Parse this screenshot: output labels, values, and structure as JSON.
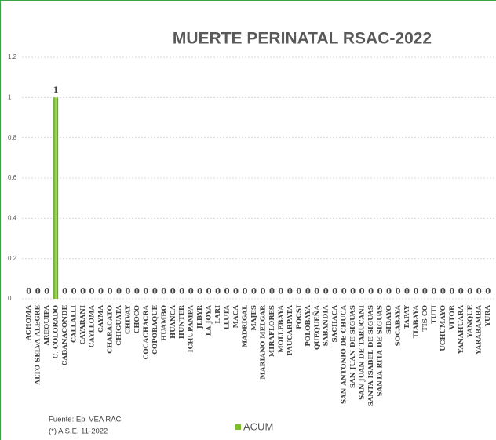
{
  "chart_data": {
    "type": "bar",
    "title": "MUERTE PERINATAL RSAC-2022",
    "categories": [
      "ACHOMA",
      "ALTO SELVA ALEGRE",
      "AREQUIPA",
      "C. COLORADO",
      "CABANACONDE",
      "CALLALLI",
      "CAYARANI",
      "CAYLLOMA",
      "CAYMA",
      "CHARACATO",
      "CHIGUATA",
      "CHIVAY",
      "CHOCO",
      "COCACHACRA",
      "COPORAQUE",
      "HUAMBO",
      "HUANCA",
      "HUNTER",
      "ICHUPAMPA",
      "JLBYR",
      "LA JOYA",
      "LARI",
      "LLUTA",
      "MACA",
      "MADRIGAL",
      "MAJES",
      "MARIANO MELGAR",
      "MIRAFLORES",
      "MOLLEBAYA",
      "PAUCARPATA",
      "POCSI",
      "POLOBAYA",
      "QUEQUEÑA",
      "SABANDIA",
      "SACHACA",
      "SAN ANTONIO DE CHUCA",
      "SAN JUAN DE SIGUAS",
      "SAN JUAN DE TARUCANI",
      "SANTA ISABEL DE SIGUAS",
      "SANTA RITA DE SIGUAS",
      "SIBAYO",
      "SOCABAYA",
      "TAPAY",
      "TIABAYA",
      "TIS CO",
      "TUTI",
      "UCHUMAYO",
      "VITOR",
      "YANAHUARA",
      "YANQUE",
      "YARABAMBA",
      "YURA"
    ],
    "series": [
      {
        "name": "ACUM",
        "color": "#7dc02c",
        "values": [
          0,
          0,
          0,
          1,
          0,
          0,
          0,
          0,
          0,
          0,
          0,
          0,
          0,
          0,
          0,
          0,
          0,
          0,
          0,
          0,
          0,
          0,
          0,
          0,
          0,
          0,
          0,
          0,
          0,
          0,
          0,
          0,
          0,
          0,
          0,
          0,
          0,
          0,
          0,
          0,
          0,
          0,
          0,
          0,
          0,
          0,
          0,
          0,
          0,
          0,
          0,
          0
        ]
      }
    ],
    "ylim": [
      0,
      1.2
    ],
    "yticks": [
      0,
      0.2,
      0.4,
      0.6,
      0.8,
      1,
      1.2
    ],
    "grid": true,
    "notes": [
      "Fuente: Epi VEA RAC",
      "(*) A S.E. 11-2022"
    ]
  }
}
